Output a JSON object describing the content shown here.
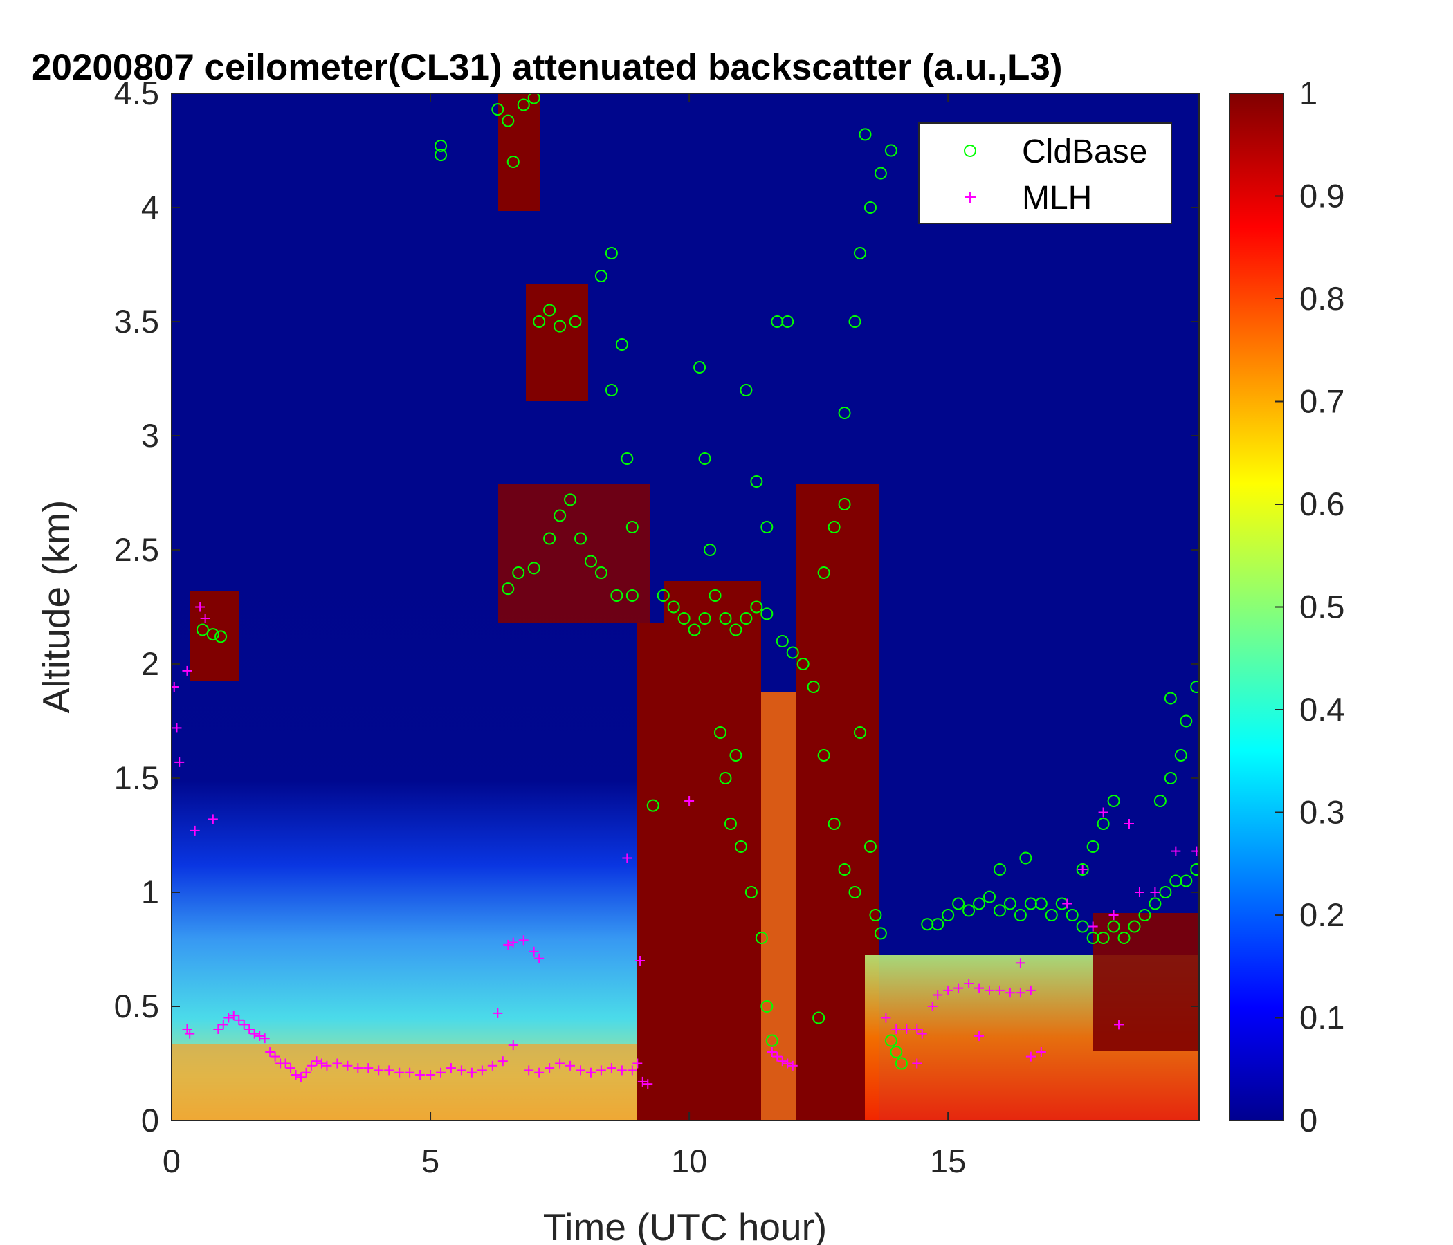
{
  "chart_data": {
    "type": "heatmap",
    "title": "20200807 ceilometer(CL31) attenuated backscatter (a.u.,L3)",
    "xlabel": "Time (UTC hour)",
    "ylabel": "Altitude (km)",
    "xlim": [
      0,
      19.85
    ],
    "ylim": [
      0,
      4.5
    ],
    "xticks": [
      "0",
      "5",
      "10",
      "15"
    ],
    "yticks": [
      "0",
      "0.5",
      "1",
      "1.5",
      "2",
      "2.5",
      "3",
      "3.5",
      "4",
      "4.5"
    ],
    "colorbar": {
      "range": [
        0,
        1
      ],
      "ticks": [
        "0",
        "0.1",
        "0.2",
        "0.3",
        "0.4",
        "0.5",
        "0.6",
        "0.7",
        "0.8",
        "0.9",
        "1"
      ],
      "colormap": "jet"
    },
    "legend": {
      "position": "top-right",
      "entries": [
        {
          "name": "CldBase",
          "marker": "circle",
          "color": "#00ff00"
        },
        {
          "name": "MLH",
          "marker": "plus",
          "color": "#ff00ff"
        }
      ]
    },
    "series": [
      {
        "name": "CldBase",
        "points": [
          [
            0.6,
            2.15
          ],
          [
            0.8,
            2.13
          ],
          [
            0.95,
            2.12
          ],
          [
            5.2,
            4.27
          ],
          [
            5.2,
            4.23
          ],
          [
            6.3,
            4.43
          ],
          [
            6.5,
            4.38
          ],
          [
            6.6,
            4.2
          ],
          [
            6.8,
            4.45
          ],
          [
            7.0,
            4.48
          ],
          [
            6.5,
            2.33
          ],
          [
            6.7,
            2.4
          ],
          [
            7.0,
            2.42
          ],
          [
            7.3,
            2.55
          ],
          [
            7.5,
            2.65
          ],
          [
            7.7,
            2.72
          ],
          [
            7.9,
            2.55
          ],
          [
            8.1,
            2.45
          ],
          [
            8.3,
            2.4
          ],
          [
            8.6,
            2.3
          ],
          [
            8.9,
            2.3
          ],
          [
            7.1,
            3.5
          ],
          [
            7.3,
            3.55
          ],
          [
            7.5,
            3.48
          ],
          [
            7.8,
            3.5
          ],
          [
            8.3,
            3.7
          ],
          [
            8.5,
            3.8
          ],
          [
            8.7,
            3.4
          ],
          [
            8.5,
            3.2
          ],
          [
            8.8,
            2.9
          ],
          [
            8.9,
            2.6
          ],
          [
            9.3,
            1.38
          ],
          [
            9.5,
            2.3
          ],
          [
            9.7,
            2.25
          ],
          [
            9.9,
            2.2
          ],
          [
            10.1,
            2.15
          ],
          [
            10.3,
            2.2
          ],
          [
            10.5,
            2.3
          ],
          [
            10.7,
            2.2
          ],
          [
            10.9,
            2.15
          ],
          [
            11.1,
            2.2
          ],
          [
            11.3,
            2.25
          ],
          [
            11.5,
            2.22
          ],
          [
            10.2,
            3.3
          ],
          [
            10.3,
            2.9
          ],
          [
            10.4,
            2.5
          ],
          [
            10.6,
            1.7
          ],
          [
            10.7,
            1.5
          ],
          [
            10.8,
            1.3
          ],
          [
            10.9,
            1.6
          ],
          [
            11.0,
            1.2
          ],
          [
            11.2,
            1.0
          ],
          [
            11.4,
            0.8
          ],
          [
            11.5,
            0.5
          ],
          [
            11.6,
            0.35
          ],
          [
            11.1,
            3.2
          ],
          [
            11.3,
            2.8
          ],
          [
            11.5,
            2.6
          ],
          [
            11.7,
            3.5
          ],
          [
            11.9,
            3.5
          ],
          [
            11.8,
            2.1
          ],
          [
            12.0,
            2.05
          ],
          [
            12.2,
            2.0
          ],
          [
            12.4,
            1.9
          ],
          [
            12.6,
            2.4
          ],
          [
            12.8,
            2.6
          ],
          [
            13.0,
            2.7
          ],
          [
            12.6,
            1.6
          ],
          [
            12.8,
            1.3
          ],
          [
            13.0,
            1.1
          ],
          [
            13.2,
            1.0
          ],
          [
            13.3,
            1.7
          ],
          [
            12.5,
            0.45
          ],
          [
            13.0,
            3.1
          ],
          [
            13.2,
            3.5
          ],
          [
            13.3,
            3.8
          ],
          [
            13.5,
            4.0
          ],
          [
            13.7,
            4.15
          ],
          [
            13.9,
            4.25
          ],
          [
            13.4,
            4.32
          ],
          [
            13.5,
            1.2
          ],
          [
            13.6,
            0.9
          ],
          [
            13.7,
            0.82
          ],
          [
            13.9,
            0.35
          ],
          [
            14.0,
            0.3
          ],
          [
            14.1,
            0.25
          ],
          [
            14.6,
            0.86
          ],
          [
            14.8,
            0.86
          ],
          [
            15.0,
            0.9
          ],
          [
            15.2,
            0.95
          ],
          [
            15.4,
            0.92
          ],
          [
            15.6,
            0.95
          ],
          [
            15.8,
            0.98
          ],
          [
            16.0,
            0.92
          ],
          [
            16.2,
            0.95
          ],
          [
            16.4,
            0.9
          ],
          [
            16.6,
            0.95
          ],
          [
            16.8,
            0.95
          ],
          [
            17.0,
            0.9
          ],
          [
            17.2,
            0.95
          ],
          [
            17.4,
            0.9
          ],
          [
            17.6,
            0.85
          ],
          [
            17.8,
            0.8
          ],
          [
            18.0,
            0.8
          ],
          [
            18.2,
            0.85
          ],
          [
            18.4,
            0.8
          ],
          [
            18.6,
            0.85
          ],
          [
            18.8,
            0.9
          ],
          [
            19.0,
            0.95
          ],
          [
            19.2,
            1.0
          ],
          [
            19.4,
            1.05
          ],
          [
            19.6,
            1.05
          ],
          [
            19.8,
            1.1
          ],
          [
            17.8,
            1.2
          ],
          [
            18.0,
            1.3
          ],
          [
            18.2,
            1.4
          ],
          [
            17.6,
            1.1
          ],
          [
            16.0,
            1.1
          ],
          [
            16.5,
            1.15
          ],
          [
            19.1,
            1.4
          ],
          [
            19.3,
            1.5
          ],
          [
            19.5,
            1.6
          ],
          [
            19.3,
            1.85
          ],
          [
            19.6,
            1.75
          ],
          [
            19.8,
            1.9
          ]
        ]
      },
      {
        "name": "MLH",
        "points": [
          [
            0.05,
            1.9
          ],
          [
            0.1,
            1.72
          ],
          [
            0.15,
            1.57
          ],
          [
            0.3,
            1.97
          ],
          [
            0.55,
            2.25
          ],
          [
            0.65,
            2.2
          ],
          [
            0.45,
            1.27
          ],
          [
            0.8,
            1.32
          ],
          [
            0.3,
            0.4
          ],
          [
            0.35,
            0.38
          ],
          [
            0.9,
            0.4
          ],
          [
            1.0,
            0.42
          ],
          [
            1.1,
            0.45
          ],
          [
            1.2,
            0.46
          ],
          [
            1.3,
            0.44
          ],
          [
            1.4,
            0.42
          ],
          [
            1.5,
            0.4
          ],
          [
            1.6,
            0.38
          ],
          [
            1.7,
            0.37
          ],
          [
            1.8,
            0.36
          ],
          [
            1.9,
            0.3
          ],
          [
            2.0,
            0.28
          ],
          [
            2.1,
            0.25
          ],
          [
            2.2,
            0.25
          ],
          [
            2.3,
            0.23
          ],
          [
            2.4,
            0.2
          ],
          [
            2.5,
            0.19
          ],
          [
            2.6,
            0.21
          ],
          [
            2.7,
            0.24
          ],
          [
            2.8,
            0.26
          ],
          [
            2.9,
            0.25
          ],
          [
            3.0,
            0.24
          ],
          [
            3.2,
            0.25
          ],
          [
            3.4,
            0.24
          ],
          [
            3.6,
            0.23
          ],
          [
            3.8,
            0.23
          ],
          [
            4.0,
            0.22
          ],
          [
            4.2,
            0.22
          ],
          [
            4.4,
            0.21
          ],
          [
            4.6,
            0.21
          ],
          [
            4.8,
            0.2
          ],
          [
            5.0,
            0.2
          ],
          [
            5.2,
            0.21
          ],
          [
            5.4,
            0.23
          ],
          [
            5.6,
            0.22
          ],
          [
            5.8,
            0.21
          ],
          [
            6.0,
            0.22
          ],
          [
            6.2,
            0.24
          ],
          [
            6.4,
            0.26
          ],
          [
            6.3,
            0.47
          ],
          [
            6.5,
            0.77
          ],
          [
            6.6,
            0.78
          ],
          [
            6.8,
            0.79
          ],
          [
            7.0,
            0.74
          ],
          [
            7.1,
            0.71
          ],
          [
            6.6,
            0.33
          ],
          [
            6.9,
            0.22
          ],
          [
            7.1,
            0.21
          ],
          [
            7.3,
            0.23
          ],
          [
            7.5,
            0.25
          ],
          [
            7.7,
            0.24
          ],
          [
            7.9,
            0.22
          ],
          [
            8.1,
            0.21
          ],
          [
            8.3,
            0.22
          ],
          [
            8.5,
            0.23
          ],
          [
            8.7,
            0.22
          ],
          [
            8.9,
            0.22
          ],
          [
            8.8,
            1.15
          ],
          [
            9.05,
            0.7
          ],
          [
            9.0,
            0.25
          ],
          [
            9.1,
            0.17
          ],
          [
            9.2,
            0.16
          ],
          [
            10.0,
            1.4
          ],
          [
            11.6,
            0.3
          ],
          [
            11.7,
            0.28
          ],
          [
            11.8,
            0.26
          ],
          [
            11.9,
            0.25
          ],
          [
            12.0,
            0.24
          ],
          [
            13.8,
            0.45
          ],
          [
            14.0,
            0.4
          ],
          [
            14.2,
            0.4
          ],
          [
            14.4,
            0.4
          ],
          [
            14.5,
            0.38
          ],
          [
            14.4,
            0.25
          ],
          [
            14.7,
            0.5
          ],
          [
            14.8,
            0.55
          ],
          [
            15.0,
            0.57
          ],
          [
            15.2,
            0.58
          ],
          [
            15.4,
            0.6
          ],
          [
            15.6,
            0.58
          ],
          [
            15.8,
            0.57
          ],
          [
            16.0,
            0.57
          ],
          [
            16.2,
            0.56
          ],
          [
            16.4,
            0.56
          ],
          [
            16.6,
            0.57
          ],
          [
            15.6,
            0.37
          ],
          [
            16.4,
            0.69
          ],
          [
            16.6,
            0.28
          ],
          [
            16.8,
            0.3
          ],
          [
            17.3,
            0.95
          ],
          [
            17.6,
            1.1
          ],
          [
            17.8,
            0.85
          ],
          [
            18.0,
            1.35
          ],
          [
            18.2,
            0.9
          ],
          [
            18.5,
            1.3
          ],
          [
            18.7,
            1.0
          ],
          [
            19.0,
            1.0
          ],
          [
            19.4,
            1.18
          ],
          [
            19.8,
            1.18
          ],
          [
            18.3,
            0.42
          ]
        ]
      }
    ]
  }
}
